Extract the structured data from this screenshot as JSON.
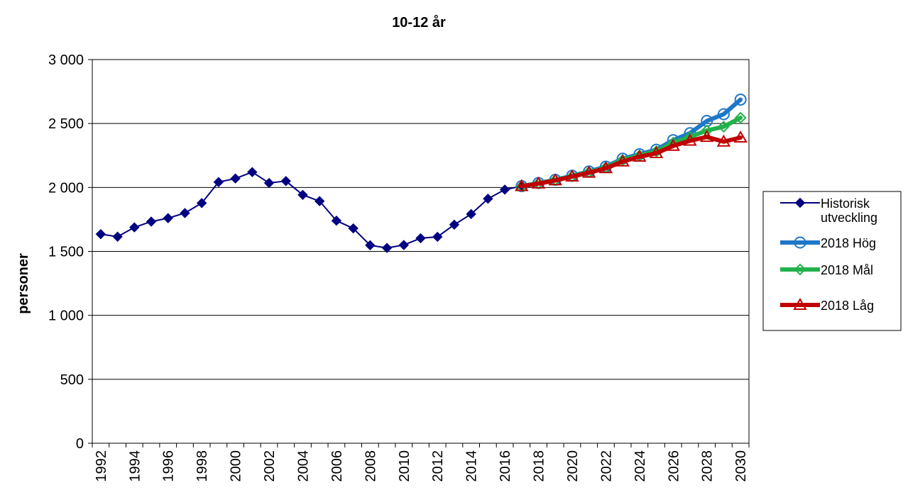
{
  "chart_data": {
    "type": "line",
    "title": "10-12 år",
    "xlabel": "",
    "ylabel": "personer",
    "xlim": [
      1992,
      2030
    ],
    "ylim": [
      0,
      3000
    ],
    "y_ticks": [
      {
        "value": 0,
        "label": "0"
      },
      {
        "value": 500,
        "label": "500"
      },
      {
        "value": 1000,
        "label": "1 000"
      },
      {
        "value": 1500,
        "label": "1 500"
      },
      {
        "value": 2000,
        "label": "2 000"
      },
      {
        "value": 2500,
        "label": "2 500"
      },
      {
        "value": 3000,
        "label": "3 000"
      }
    ],
    "x_tick_labels": [
      "1992",
      "1994",
      "1996",
      "1998",
      "2000",
      "2002",
      "2004",
      "2006",
      "2008",
      "2010",
      "2012",
      "2014",
      "2016",
      "2018",
      "2020",
      "2022",
      "2024",
      "2026",
      "2028",
      "2030"
    ],
    "grid": "horizontal",
    "legend_position": "right",
    "series": [
      {
        "name": "Historisk utveckling",
        "color": "#000080",
        "marker": "diamond-filled",
        "x": [
          1992,
          1993,
          1994,
          1995,
          1996,
          1997,
          1998,
          1999,
          2000,
          2001,
          2002,
          2003,
          2004,
          2005,
          2006,
          2007,
          2008,
          2009,
          2010,
          2011,
          2012,
          2013,
          2014,
          2015,
          2016,
          2017
        ],
        "y": [
          1635,
          1615,
          1688,
          1733,
          1760,
          1800,
          1878,
          2042,
          2070,
          2120,
          2035,
          2050,
          1942,
          1893,
          1740,
          1680,
          1548,
          1527,
          1550,
          1603,
          1614,
          1709,
          1792,
          1912,
          1983,
          2010
        ]
      },
      {
        "name": "2018 Hög",
        "color": "#1F77C8",
        "marker": "circle-open",
        "x": [
          2017,
          2018,
          2019,
          2020,
          2021,
          2022,
          2023,
          2024,
          2025,
          2026,
          2027,
          2028,
          2029,
          2030
        ],
        "y": [
          2010,
          2035,
          2060,
          2092,
          2125,
          2163,
          2225,
          2260,
          2295,
          2370,
          2425,
          2520,
          2573,
          2687
        ]
      },
      {
        "name": "2018 Mål",
        "color": "#22B14C",
        "marker": "diamond-open",
        "x": [
          2017,
          2018,
          2019,
          2020,
          2021,
          2022,
          2023,
          2024,
          2025,
          2026,
          2027,
          2028,
          2029,
          2030
        ],
        "y": [
          2010,
          2033,
          2058,
          2088,
          2120,
          2157,
          2215,
          2250,
          2283,
          2350,
          2395,
          2445,
          2475,
          2545
        ]
      },
      {
        "name": "2018 Låg",
        "color": "#C00000",
        "marker": "triangle-open",
        "x": [
          2017,
          2018,
          2019,
          2020,
          2021,
          2022,
          2023,
          2024,
          2025,
          2026,
          2027,
          2028,
          2029,
          2030
        ],
        "y": [
          2010,
          2030,
          2055,
          2085,
          2115,
          2150,
          2203,
          2240,
          2268,
          2325,
          2365,
          2395,
          2358,
          2390
        ]
      }
    ],
    "legend_labels": [
      [
        "Historisk",
        "utveckling"
      ],
      [
        "2018 Hög"
      ],
      [
        "2018 Mål"
      ],
      [
        "2018 Låg"
      ]
    ]
  }
}
